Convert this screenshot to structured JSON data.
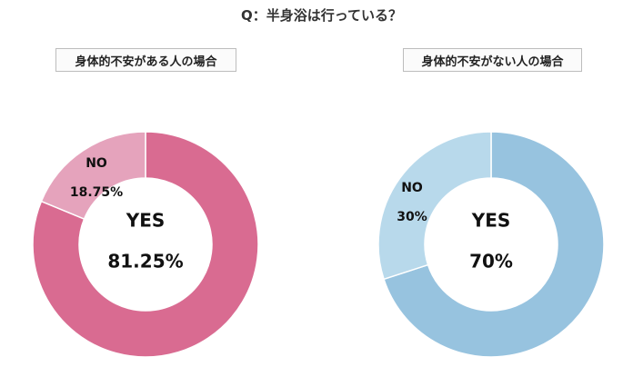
{
  "title": "Q：半身浴は行っている？",
  "chart_data": [
    {
      "type": "pie",
      "title": "身体的不安がある人の場合",
      "categories": [
        "YES",
        "NO"
      ],
      "values": [
        81.25,
        18.75
      ],
      "value_labels": [
        "81.25%",
        "18.75%"
      ],
      "colors": [
        "#d96b91",
        "#e5a3bc"
      ]
    },
    {
      "type": "pie",
      "title": "身体的不安がない人の場合",
      "categories": [
        "YES",
        "NO"
      ],
      "values": [
        70,
        30
      ],
      "value_labels": [
        "70%",
        "30%"
      ],
      "colors": [
        "#97c3df",
        "#b8d9eb"
      ]
    }
  ]
}
